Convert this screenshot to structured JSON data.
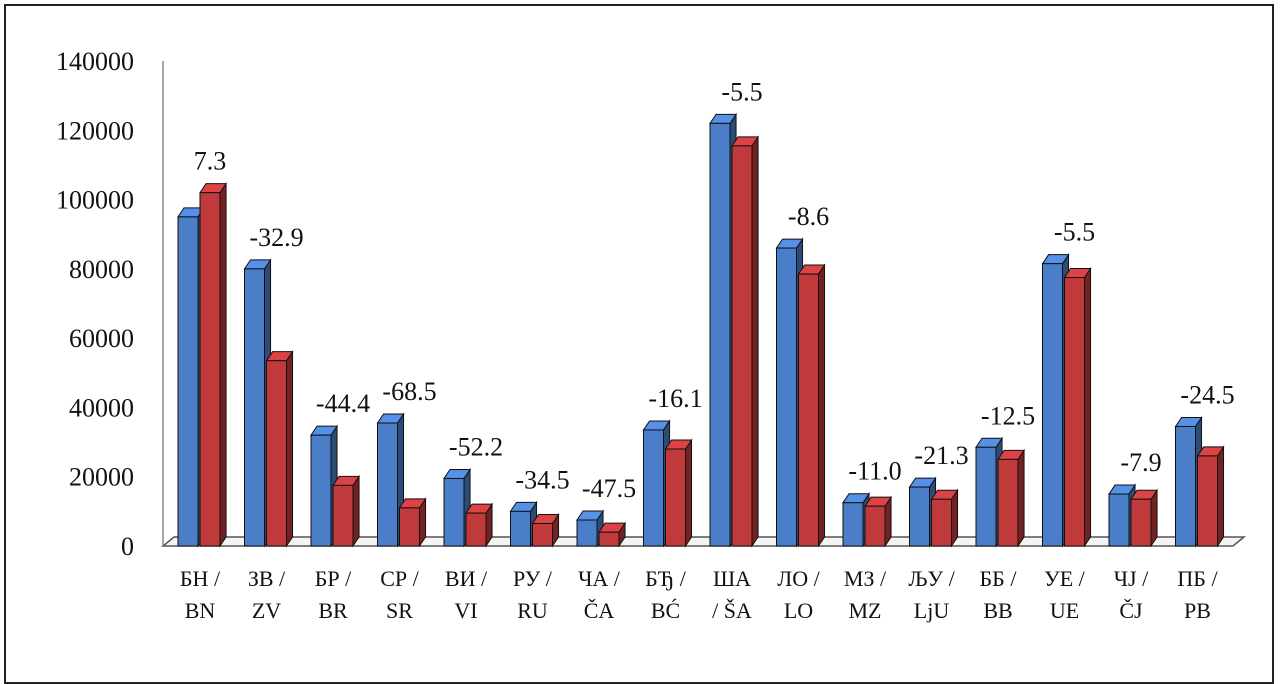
{
  "chart_data": {
    "type": "bar",
    "categories": [
      [
        "БН /",
        "BN"
      ],
      [
        "ЗВ /",
        "ZV"
      ],
      [
        "БР /",
        "BR"
      ],
      [
        "СР /",
        "SR"
      ],
      [
        "ВИ /",
        "VI"
      ],
      [
        "РУ /",
        "RU"
      ],
      [
        "ЧА /",
        "ČA"
      ],
      [
        "БЂ /",
        "BĆ"
      ],
      [
        "ША",
        "/ ŠA"
      ],
      [
        "ЛО /",
        "LO"
      ],
      [
        "МЗ /",
        "MZ"
      ],
      [
        "ЉУ /",
        "LjU"
      ],
      [
        "ББ /",
        "BB"
      ],
      [
        "УЕ /",
        "UE"
      ],
      [
        "ЧЈ /",
        "ČJ"
      ],
      [
        "ПБ /",
        "PB"
      ]
    ],
    "series": [
      {
        "values": [
          95000,
          80000,
          32000,
          35500,
          19500,
          10000,
          7500,
          33500,
          122000,
          86000,
          12500,
          17000,
          28500,
          81500,
          15000,
          34500
        ],
        "color": "#4a7ec8"
      },
      {
        "values": [
          102000,
          53500,
          17500,
          11000,
          9500,
          6500,
          4000,
          28000,
          115500,
          78500,
          11500,
          13500,
          25000,
          77500,
          13500,
          26000
        ],
        "color": "#c0393b"
      }
    ],
    "data_labels": [
      "7.3",
      "-32.9",
      "-44.4",
      "-68.5",
      "-52.2",
      "-34.5",
      "-47.5",
      "-16.1",
      "-5.5",
      "-8.6",
      "-11.0",
      "-21.3",
      "-12.5",
      "-5.5",
      "-7.9",
      "-24.5"
    ],
    "y_ticks": [
      "0",
      "20000",
      "40000",
      "60000",
      "80000",
      "100000",
      "120000",
      "140000"
    ],
    "ylim": [
      0,
      140000
    ],
    "grid": false,
    "legend": "none"
  }
}
